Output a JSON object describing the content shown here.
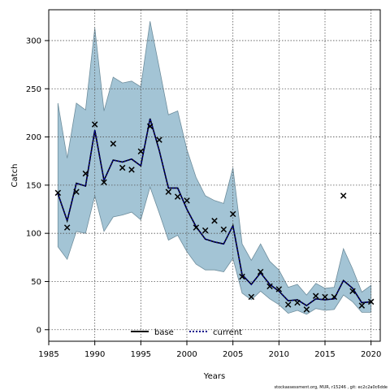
{
  "chart_data": {
    "type": "line",
    "xlabel": "Years",
    "ylabel": "Catch",
    "xlim": [
      1985,
      2021
    ],
    "ylim": [
      -12,
      332
    ],
    "xticks": [
      1985,
      1990,
      1995,
      2000,
      2005,
      2010,
      2015,
      2020
    ],
    "yticks": [
      0,
      50,
      100,
      150,
      200,
      250,
      300
    ],
    "grid": true,
    "legend_position": "bottom-center",
    "footnote": "stockassessment.org, MUR, r15246 , git: ec2c2a0c6dde",
    "colors": {
      "band": "#a3c4d5",
      "band_edge": "#6e8d9c",
      "base": "#000000",
      "current": "#00008b",
      "observed": "#000000"
    },
    "observed": {
      "x": [
        1986,
        1987,
        1988,
        1989,
        1990,
        1991,
        1992,
        1993,
        1994,
        1995,
        1996,
        1997,
        1998,
        1999,
        2000,
        2001,
        2002,
        2003,
        2004,
        2005,
        2006,
        2007,
        2008,
        2009,
        2010,
        2011,
        2012,
        2013,
        2014,
        2015,
        2016,
        2017,
        2018,
        2019,
        2020
      ],
      "y": [
        142,
        106,
        143,
        162,
        213,
        153,
        193,
        168,
        166,
        185,
        211,
        197,
        143,
        138,
        134,
        106,
        103,
        113,
        104,
        120,
        55,
        34,
        60,
        45,
        42,
        26,
        28,
        21,
        35,
        34,
        34,
        139,
        40,
        25,
        29
      ]
    },
    "series": [
      {
        "name": "base",
        "style": "solid",
        "x": [
          1986,
          1987,
          1988,
          1989,
          1990,
          1991,
          1992,
          1993,
          1994,
          1995,
          1996,
          1997,
          1998,
          1999,
          2000,
          2001,
          2002,
          2003,
          2004,
          2005,
          2006,
          2007,
          2008,
          2009,
          2010,
          2011,
          2012,
          2013,
          2014,
          2015,
          2016,
          2017,
          2018,
          2019,
          2020
        ],
        "y": [
          141,
          113,
          152,
          149,
          207,
          155,
          176,
          174,
          177,
          170,
          219,
          186,
          147,
          147,
          125,
          107,
          94,
          91,
          89,
          108,
          57,
          47,
          59,
          47,
          40,
          30,
          31,
          25,
          32,
          31,
          32,
          51,
          43,
          28,
          29
        ],
        "lower": [
          86,
          73,
          102,
          100,
          139,
          102,
          117,
          119,
          122,
          114,
          148,
          121,
          93,
          98,
          81,
          68,
          62,
          62,
          60,
          74,
          38,
          31,
          40,
          32,
          26,
          17,
          20,
          16,
          22,
          20,
          21,
          36,
          29,
          18,
          18
        ],
        "upper": [
          235,
          178,
          235,
          228,
          313,
          227,
          262,
          256,
          258,
          252,
          320,
          272,
          223,
          227,
          187,
          158,
          139,
          134,
          131,
          168,
          89,
          72,
          89,
          71,
          62,
          44,
          47,
          36,
          48,
          43,
          44,
          84,
          63,
          39,
          46
        ]
      },
      {
        "name": "current",
        "style": "dotted",
        "x": [
          1986,
          1987,
          1988,
          1989,
          1990,
          1991,
          1992,
          1993,
          1994,
          1995,
          1996,
          1997,
          1998,
          1999,
          2000,
          2001,
          2002,
          2003,
          2004,
          2005,
          2006,
          2007,
          2008,
          2009,
          2010,
          2011,
          2012,
          2013,
          2014,
          2015,
          2016,
          2017,
          2018,
          2019,
          2020
        ],
        "y": [
          141,
          113,
          152,
          149,
          207,
          155,
          176,
          174,
          177,
          170,
          219,
          186,
          147,
          147,
          125,
          107,
          94,
          91,
          89,
          108,
          57,
          47,
          59,
          47,
          40,
          30,
          31,
          25,
          32,
          31,
          32,
          51,
          43,
          28,
          29
        ]
      }
    ]
  }
}
